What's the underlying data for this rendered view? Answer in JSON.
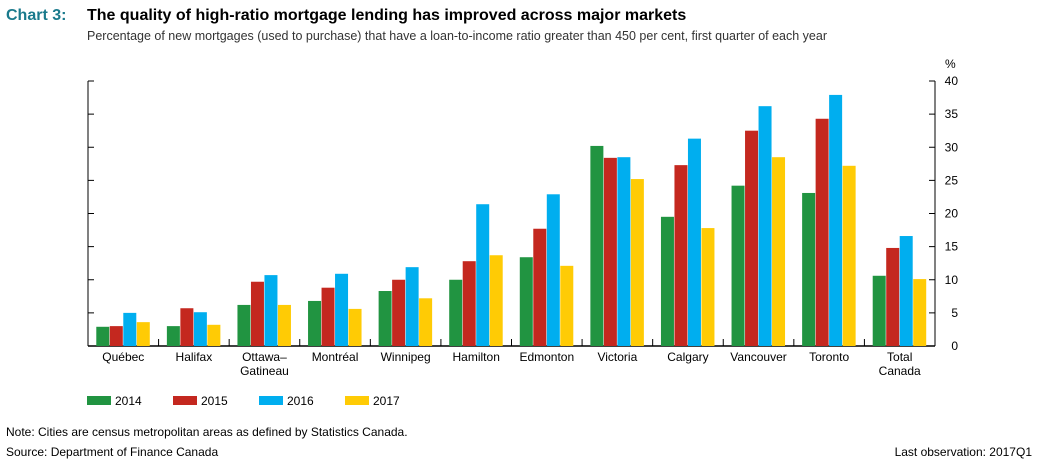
{
  "chart_data": {
    "type": "bar",
    "chart_label": "Chart 3:",
    "title": "The quality of high-ratio mortgage lending has improved across major markets",
    "subtitle": "Percentage of new mortgages (used to purchase) that have a loan-to-income ratio greater than 450 per cent, first quarter of each year",
    "ylabel": "%",
    "ylim": [
      0,
      40
    ],
    "yticks": [
      0,
      5,
      10,
      15,
      20,
      25,
      30,
      35,
      40
    ],
    "categories": [
      [
        "Québec"
      ],
      [
        "Halifax"
      ],
      [
        "Ottawa–",
        "Gatineau"
      ],
      [
        "Montréal"
      ],
      [
        "Winnipeg"
      ],
      [
        "Hamilton"
      ],
      [
        "Edmonton"
      ],
      [
        "Victoria"
      ],
      [
        "Calgary"
      ],
      [
        "Vancouver"
      ],
      [
        "Toronto"
      ],
      [
        "Total",
        "Canada"
      ]
    ],
    "series": [
      {
        "name": "2014",
        "color": "#219441",
        "values": [
          2.9,
          3.0,
          6.2,
          6.8,
          8.3,
          10.0,
          13.4,
          30.2,
          19.5,
          24.2,
          23.1,
          10.6
        ]
      },
      {
        "name": "2015",
        "color": "#c4281f",
        "values": [
          3.0,
          5.7,
          9.7,
          8.8,
          10.0,
          12.8,
          17.7,
          28.4,
          27.3,
          32.5,
          34.3,
          14.8
        ]
      },
      {
        "name": "2016",
        "color": "#00aeef",
        "values": [
          5.0,
          5.1,
          10.7,
          10.9,
          11.9,
          21.4,
          22.9,
          28.5,
          31.3,
          36.2,
          37.9,
          16.6
        ]
      },
      {
        "name": "2017",
        "color": "#ffcb05",
        "values": [
          3.6,
          3.2,
          6.2,
          5.6,
          7.2,
          13.7,
          12.1,
          25.2,
          17.8,
          28.5,
          27.2,
          10.1
        ]
      }
    ],
    "legend_position": "bottom-left",
    "note": "Note: Cities are census metropolitan areas as defined by Statistics Canada.",
    "source": "Source: Department of Finance Canada",
    "last_observation": "Last observation: 2017Q1"
  }
}
